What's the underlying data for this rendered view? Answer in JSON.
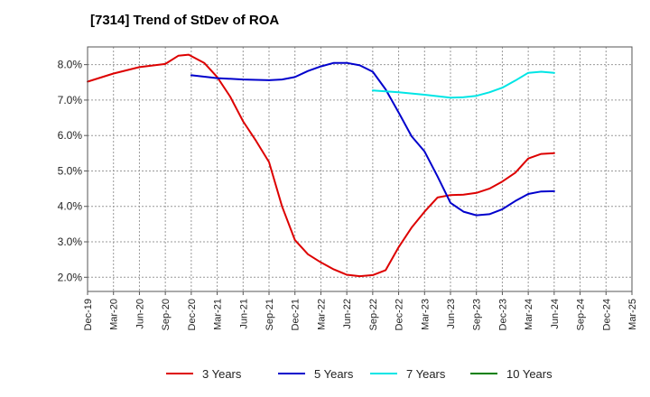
{
  "chart_data": {
    "type": "line",
    "title": "[7314]  Trend of StDev of ROA",
    "xlabel": "",
    "ylabel": "",
    "x": [
      "Dec-19",
      "Mar-20",
      "Jun-20",
      "Sep-20",
      "Dec-20",
      "Mar-21",
      "Jun-21",
      "Sep-21",
      "Dec-21",
      "Mar-22",
      "Jun-22",
      "Sep-22",
      "Dec-22",
      "Mar-23",
      "Jun-23",
      "Sep-23",
      "Dec-23",
      "Mar-24",
      "Jun-24",
      "Sep-24",
      "Dec-24",
      "Mar-25"
    ],
    "y_ticks": [
      "2.0%",
      "3.0%",
      "4.0%",
      "5.0%",
      "6.0%",
      "7.0%",
      "8.0%"
    ],
    "ylim": [
      1.6,
      8.5
    ],
    "grid": true,
    "legend_position": "bottom",
    "series": [
      {
        "name": "3 Years",
        "color": "#dd0000",
        "points": [
          [
            0,
            7.52
          ],
          [
            1,
            7.75
          ],
          [
            2,
            7.93
          ],
          [
            3,
            8.02
          ],
          [
            3.5,
            8.25
          ],
          [
            3.9,
            8.28
          ],
          [
            4.5,
            8.05
          ],
          [
            5,
            7.65
          ],
          [
            5.5,
            7.1
          ],
          [
            6,
            6.4
          ],
          [
            6.5,
            5.85
          ],
          [
            7,
            5.25
          ],
          [
            7.5,
            4.0
          ],
          [
            8,
            3.05
          ],
          [
            8.5,
            2.65
          ],
          [
            9,
            2.42
          ],
          [
            9.5,
            2.22
          ],
          [
            10,
            2.07
          ],
          [
            10.5,
            2.03
          ],
          [
            11,
            2.06
          ],
          [
            11.5,
            2.2
          ],
          [
            12,
            2.85
          ],
          [
            12.5,
            3.4
          ],
          [
            13,
            3.85
          ],
          [
            13.5,
            4.25
          ],
          [
            14,
            4.32
          ],
          [
            14.5,
            4.33
          ],
          [
            15,
            4.38
          ],
          [
            15.5,
            4.5
          ],
          [
            16,
            4.7
          ],
          [
            16.5,
            4.95
          ],
          [
            17,
            5.35
          ],
          [
            17.5,
            5.48
          ],
          [
            18,
            5.5
          ]
        ]
      },
      {
        "name": "5 Years",
        "color": "#0000cc",
        "points": [
          [
            4,
            7.7
          ],
          [
            5,
            7.62
          ],
          [
            6,
            7.58
          ],
          [
            7,
            7.56
          ],
          [
            7.5,
            7.58
          ],
          [
            8,
            7.65
          ],
          [
            8.5,
            7.82
          ],
          [
            9,
            7.95
          ],
          [
            9.5,
            8.05
          ],
          [
            10,
            8.05
          ],
          [
            10.5,
            7.98
          ],
          [
            11,
            7.8
          ],
          [
            11.5,
            7.3
          ],
          [
            12,
            6.65
          ],
          [
            12.5,
            5.98
          ],
          [
            13,
            5.55
          ],
          [
            13.5,
            4.85
          ],
          [
            14,
            4.1
          ],
          [
            14.5,
            3.85
          ],
          [
            15,
            3.75
          ],
          [
            15.5,
            3.78
          ],
          [
            16,
            3.92
          ],
          [
            16.5,
            4.15
          ],
          [
            17,
            4.35
          ],
          [
            17.5,
            4.42
          ],
          [
            18,
            4.43
          ]
        ]
      },
      {
        "name": "7 Years",
        "color": "#00e5e5",
        "points": [
          [
            11,
            7.27
          ],
          [
            12,
            7.22
          ],
          [
            13,
            7.15
          ],
          [
            14,
            7.07
          ],
          [
            14.5,
            7.08
          ],
          [
            15,
            7.12
          ],
          [
            15.5,
            7.22
          ],
          [
            16,
            7.35
          ],
          [
            16.5,
            7.55
          ],
          [
            17,
            7.77
          ],
          [
            17.5,
            7.8
          ],
          [
            18,
            7.77
          ]
        ]
      },
      {
        "name": "10 Years",
        "color": "#008000",
        "points": []
      }
    ]
  }
}
